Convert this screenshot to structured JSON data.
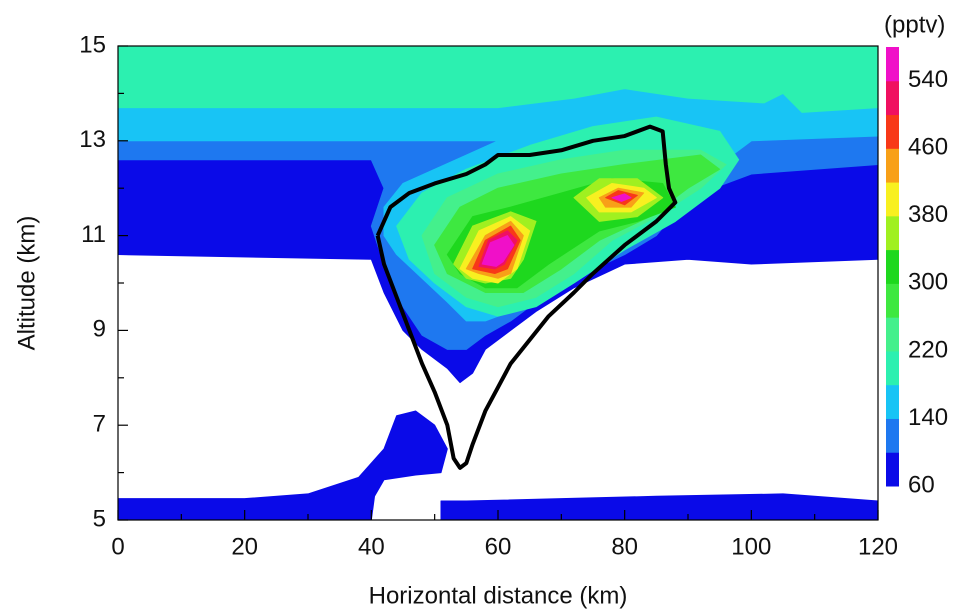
{
  "chart_data": {
    "type": "contour",
    "x_label": "Horizontal distance (km)",
    "y_label": "Altitude (km)",
    "colorbar_label": "(pptv)",
    "xlim": [
      0,
      120
    ],
    "xticks": [
      0,
      20,
      40,
      60,
      80,
      100,
      120
    ],
    "xminor": [
      10,
      30,
      50,
      70,
      90,
      110
    ],
    "ylim": [
      5,
      15
    ],
    "yticks": [
      5,
      7,
      9,
      11,
      13,
      15
    ],
    "yminor": [
      6,
      8,
      10,
      12,
      14
    ],
    "levels": [
      60,
      100,
      140,
      180,
      220,
      260,
      300,
      340,
      380,
      420,
      460,
      500,
      540,
      580
    ],
    "colors": [
      "#0a0ae8",
      "#1e78f0",
      "#18c4f5",
      "#2cf0b0",
      "#44f08c",
      "#3ee840",
      "#1ed81e",
      "#a0f020",
      "#f8f020",
      "#f8a018",
      "#f83818",
      "#f01060",
      "#f010c8"
    ],
    "colorbar_ticks": [
      60,
      140,
      220,
      300,
      380,
      460,
      540
    ],
    "regions": [
      {
        "level": 60,
        "x": [
          0,
          120,
          120,
          100,
          90,
          80,
          72,
          66,
          62,
          58,
          56,
          54,
          52,
          48,
          45,
          42,
          40,
          0
        ],
        "y": [
          15,
          15,
          10.5,
          10.4,
          10.5,
          10.4,
          9.9,
          9.4,
          9,
          8.6,
          8.1,
          7.9,
          8.2,
          8.6,
          9,
          9.8,
          10.5,
          10.6
        ]
      },
      {
        "level": 60,
        "x": [
          0,
          40,
          40.5,
          42,
          47,
          51,
          52,
          50,
          47,
          44,
          42,
          38,
          30,
          20,
          0
        ],
        "y": [
          5,
          5,
          5.5,
          5.85,
          5.95,
          6,
          6.5,
          7,
          7.3,
          7.2,
          6.5,
          5.9,
          5.55,
          5.45,
          5.45
        ]
      },
      {
        "level": 60,
        "x": [
          51,
          120,
          120,
          105,
          85,
          70,
          55,
          51
        ],
        "y": [
          5,
          5,
          5.4,
          5.55,
          5.5,
          5.45,
          5.4,
          5.4
        ]
      },
      {
        "level": 100,
        "x": [
          0,
          120,
          120,
          100,
          90,
          85,
          80,
          72,
          66,
          62,
          58,
          55,
          52,
          48,
          45,
          42,
          40,
          42,
          40,
          0
        ],
        "y": [
          15,
          15,
          12.5,
          12.3,
          11.8,
          11,
          10.6,
          10.1,
          9.6,
          9.2,
          8.9,
          8.6,
          8.6,
          8.9,
          9.5,
          10.4,
          11.2,
          12,
          12.6,
          12.6
        ]
      },
      {
        "level": 140,
        "x": [
          0,
          120,
          120,
          100,
          95,
          90,
          85,
          78,
          72,
          66,
          62,
          58,
          55,
          52,
          48,
          44,
          42,
          42,
          45,
          55,
          60,
          0
        ],
        "y": [
          15,
          15,
          13.1,
          13,
          12.5,
          12,
          11.5,
          11,
          10.4,
          9.8,
          9.4,
          9.2,
          9.2,
          9.6,
          10.1,
          10.6,
          11,
          11.6,
          12.1,
          12.7,
          13,
          13
        ]
      },
      {
        "level": 180,
        "x": [
          0,
          120,
          120,
          108,
          105,
          102,
          90,
          80,
          72,
          60,
          0
        ],
        "y": [
          15,
          15,
          13.7,
          13.6,
          14,
          13.8,
          13.9,
          14.1,
          13.9,
          13.7,
          13.7
        ]
      },
      {
        "level": 180,
        "x": [
          44,
          48,
          55,
          65,
          75,
          85,
          95,
          98,
          95,
          88,
          80,
          72,
          66,
          60,
          55,
          50,
          46
        ],
        "y": [
          11.2,
          11.9,
          12.4,
          12.9,
          13.3,
          13.5,
          13.2,
          12.6,
          12,
          11.3,
          10.7,
          10,
          9.5,
          9.3,
          9.5,
          10,
          10.5
        ]
      },
      {
        "level": 220,
        "x": [
          48,
          52,
          60,
          70,
          80,
          92,
          96,
          92,
          85,
          78,
          72,
          66,
          60,
          55,
          50
        ],
        "y": [
          11,
          11.8,
          12.3,
          12.6,
          12.8,
          12.8,
          12.5,
          12,
          11.4,
          10.9,
          10.2,
          9.7,
          9.5,
          9.7,
          10.2
        ]
      },
      {
        "level": 260,
        "x": [
          50,
          54,
          60,
          70,
          80,
          92,
          95,
          90,
          84,
          76,
          70,
          64,
          58,
          52
        ],
        "y": [
          10.8,
          11.6,
          12,
          12.3,
          12.5,
          12.7,
          12.4,
          12,
          11.4,
          10.9,
          10.3,
          9.8,
          9.8,
          10.2
        ]
      },
      {
        "level": 300,
        "x": [
          52,
          56,
          62,
          70,
          78,
          86,
          88,
          82,
          76,
          68,
          63,
          58,
          54
        ],
        "y": [
          10.6,
          11.4,
          11.6,
          11.9,
          12.2,
          12.1,
          11.6,
          11.3,
          11.1,
          10.4,
          9.9,
          9.9,
          10.2
        ]
      },
      {
        "level": 340,
        "x": [
          53,
          56,
          62,
          66,
          64,
          62,
          58,
          55
        ],
        "y": [
          10.4,
          11.2,
          11.5,
          11.3,
          10.5,
          10.1,
          10,
          10.1
        ]
      },
      {
        "level": 340,
        "x": [
          72,
          76,
          82,
          86,
          82,
          76
        ],
        "y": [
          11.8,
          12.2,
          12.2,
          11.8,
          11.4,
          11.3
        ]
      },
      {
        "level": 380,
        "x": [
          54,
          57,
          62,
          65,
          63,
          60,
          56
        ],
        "y": [
          10.3,
          11.1,
          11.4,
          11.1,
          10.3,
          10,
          10.1
        ]
      },
      {
        "level": 380,
        "x": [
          74,
          78,
          83,
          85,
          81,
          76
        ],
        "y": [
          11.8,
          12.1,
          12,
          11.8,
          11.5,
          11.5
        ]
      },
      {
        "level": 420,
        "x": [
          55,
          58,
          62,
          64,
          62,
          60,
          57
        ],
        "y": [
          10.3,
          11,
          11.3,
          11,
          10.2,
          10.1,
          10.2
        ]
      },
      {
        "level": 420,
        "x": [
          76,
          79,
          83,
          81,
          77
        ],
        "y": [
          11.8,
          12,
          11.9,
          11.6,
          11.6
        ]
      },
      {
        "level": 460,
        "x": [
          56,
          58,
          62,
          63.5,
          61.5,
          59.5
        ],
        "y": [
          10.3,
          10.9,
          11.2,
          10.9,
          10.3,
          10.2
        ]
      },
      {
        "level": 460,
        "x": [
          77,
          79,
          82,
          80
        ],
        "y": [
          11.8,
          11.95,
          11.85,
          11.65
        ]
      },
      {
        "level": 500,
        "x": [
          57,
          58.5,
          61.5,
          63,
          61,
          59.5
        ],
        "y": [
          10.35,
          10.9,
          11.1,
          10.9,
          10.4,
          10.3
        ]
      },
      {
        "level": 540,
        "x": [
          57.5,
          58.8,
          61.5,
          62.5,
          60.8,
          59.7
        ],
        "y": [
          10.4,
          10.85,
          11,
          10.8,
          10.45,
          10.35
        ]
      },
      {
        "level": 540,
        "x": [
          78,
          80,
          81,
          79.5
        ],
        "y": [
          11.8,
          11.88,
          11.8,
          11.72
        ]
      }
    ],
    "outline": {
      "color": "#000000",
      "x": [
        41,
        43,
        46,
        50,
        55,
        58,
        60,
        65,
        70,
        75,
        80,
        84,
        86,
        86.5,
        87,
        88,
        85,
        80,
        75,
        72,
        68,
        65,
        62,
        60,
        58,
        56,
        55,
        54,
        53,
        52,
        50,
        48,
        46,
        44,
        42,
        41
      ],
      "y": [
        11,
        11.6,
        11.9,
        12.1,
        12.3,
        12.5,
        12.7,
        12.7,
        12.8,
        13,
        13.1,
        13.3,
        13.2,
        12.5,
        12,
        11.7,
        11.3,
        10.8,
        10.2,
        9.8,
        9.3,
        8.8,
        8.3,
        7.8,
        7.3,
        6.6,
        6.2,
        6.1,
        6.3,
        7,
        7.7,
        8.3,
        9,
        9.7,
        10.4,
        11
      ]
    }
  }
}
